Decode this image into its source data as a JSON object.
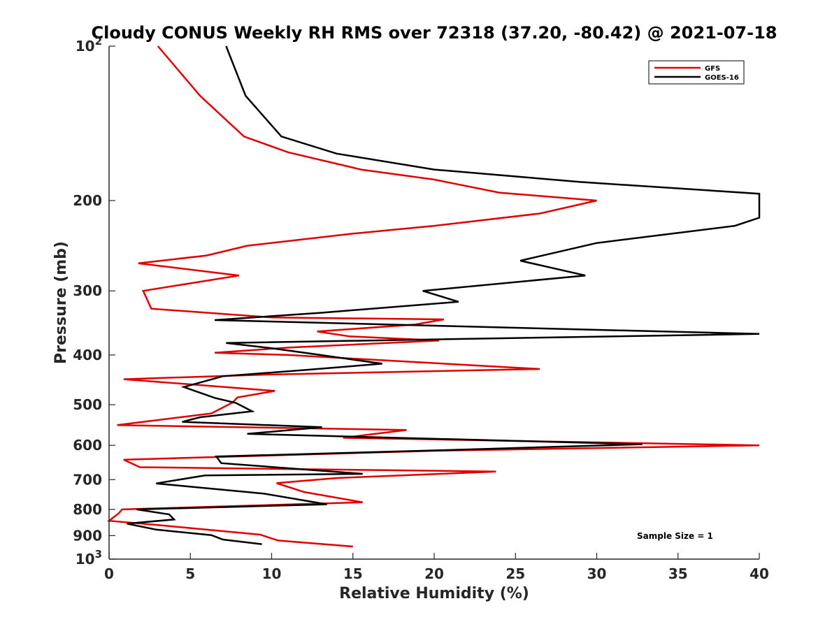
{
  "chart_data": {
    "type": "line",
    "title": "Cloudy CONUS Weekly RH RMS over 72318 (37.20, -80.42) @ 2021-07-18",
    "xlabel": "Relative Humidity (%)",
    "ylabel": "Pressure (mb)",
    "xlim": [
      0,
      40
    ],
    "ylim": [
      100,
      1000
    ],
    "yscale": "log",
    "yreversed": true,
    "xticks": [
      0,
      5,
      10,
      15,
      20,
      25,
      30,
      35,
      40
    ],
    "xtick_labels": [
      "0",
      "5",
      "10",
      "15",
      "20",
      "25",
      "30",
      "35",
      "40"
    ],
    "yticks": [
      100,
      200,
      300,
      400,
      500,
      600,
      700,
      800,
      900,
      1000
    ],
    "ytick_labels": [
      {
        "base": "10",
        "exp": "2"
      },
      {
        "base": "200"
      },
      {
        "base": "300"
      },
      {
        "base": "400"
      },
      {
        "base": "500"
      },
      {
        "base": "600"
      },
      {
        "base": "700"
      },
      {
        "base": "800"
      },
      {
        "base": "900"
      },
      {
        "base": "10",
        "exp": "3"
      }
    ],
    "legend_position": "top-right",
    "annotation": "Sample Size = 1",
    "series": [
      {
        "name": "GFS",
        "color": "#e00000",
        "points": [
          [
            3.0,
            100
          ],
          [
            5.6,
            125
          ],
          [
            8.3,
            150
          ],
          [
            11.0,
            161
          ],
          [
            15.5,
            174
          ],
          [
            20.0,
            182
          ],
          [
            24.0,
            193
          ],
          [
            30.0,
            200
          ],
          [
            26.5,
            212
          ],
          [
            20.0,
            224
          ],
          [
            15.0,
            232
          ],
          [
            8.5,
            245
          ],
          [
            6.0,
            256
          ],
          [
            1.8,
            265
          ],
          [
            8.0,
            280
          ],
          [
            2.1,
            300
          ],
          [
            2.6,
            325
          ],
          [
            10.0,
            338
          ],
          [
            20.6,
            341
          ],
          [
            18.8,
            349
          ],
          [
            12.8,
            360
          ],
          [
            14.8,
            368
          ],
          [
            20.3,
            375
          ],
          [
            11.0,
            387
          ],
          [
            6.5,
            396
          ],
          [
            11.0,
            400
          ],
          [
            26.5,
            426
          ],
          [
            9.5,
            437
          ],
          [
            0.9,
            446
          ],
          [
            10.2,
            470
          ],
          [
            7.9,
            484
          ],
          [
            7.6,
            495
          ],
          [
            6.3,
            520
          ],
          [
            0.5,
            548
          ],
          [
            18.3,
            560
          ],
          [
            14.4,
            580
          ],
          [
            40.0,
            600
          ],
          [
            20.0,
            615
          ],
          [
            0.9,
            640
          ],
          [
            1.9,
            662
          ],
          [
            23.8,
            675
          ],
          [
            14.0,
            695
          ],
          [
            10.3,
            711
          ],
          [
            12.0,
            740
          ],
          [
            15.6,
            775
          ],
          [
            0.8,
            800
          ],
          [
            0.6,
            814
          ],
          [
            0,
            842
          ],
          [
            3.0,
            858
          ],
          [
            9.3,
            896
          ],
          [
            10.4,
            920
          ],
          [
            15.0,
            945
          ]
        ]
      },
      {
        "name": "GOES-16",
        "color": "#000000",
        "points": [
          [
            7.2,
            100
          ],
          [
            8.4,
            125
          ],
          [
            10.6,
            150
          ],
          [
            14.0,
            162
          ],
          [
            20.0,
            174
          ],
          [
            29.0,
            184
          ],
          [
            40.0,
            194
          ],
          [
            40.0,
            216
          ],
          [
            38.5,
            224
          ],
          [
            30.0,
            242
          ],
          [
            25.3,
            262
          ],
          [
            29.3,
            280
          ],
          [
            19.3,
            300
          ],
          [
            21.5,
            315
          ],
          [
            13.0,
            331
          ],
          [
            6.5,
            342
          ],
          [
            40.0,
            364
          ],
          [
            7.2,
            379
          ],
          [
            10.0,
            388
          ],
          [
            13.0,
            400
          ],
          [
            16.8,
            416
          ],
          [
            12.0,
            428
          ],
          [
            7.0,
            440
          ],
          [
            4.6,
            462
          ],
          [
            6.5,
            485
          ],
          [
            7.8,
            496
          ],
          [
            8.8,
            515
          ],
          [
            5.6,
            529
          ],
          [
            4.5,
            540
          ],
          [
            13.1,
            553
          ],
          [
            8.5,
            570
          ],
          [
            32.8,
            597
          ],
          [
            20.0,
            614
          ],
          [
            6.6,
            631
          ],
          [
            6.9,
            650
          ],
          [
            15.6,
            682
          ],
          [
            5.9,
            687
          ],
          [
            2.9,
            712
          ],
          [
            9.5,
            745
          ],
          [
            13.4,
            782
          ],
          [
            1.7,
            800
          ],
          [
            3.7,
            818
          ],
          [
            4.0,
            837
          ],
          [
            1.1,
            853
          ],
          [
            2.9,
            876
          ],
          [
            6.3,
            898
          ],
          [
            7.0,
            916
          ],
          [
            9.4,
            935
          ]
        ]
      }
    ]
  }
}
